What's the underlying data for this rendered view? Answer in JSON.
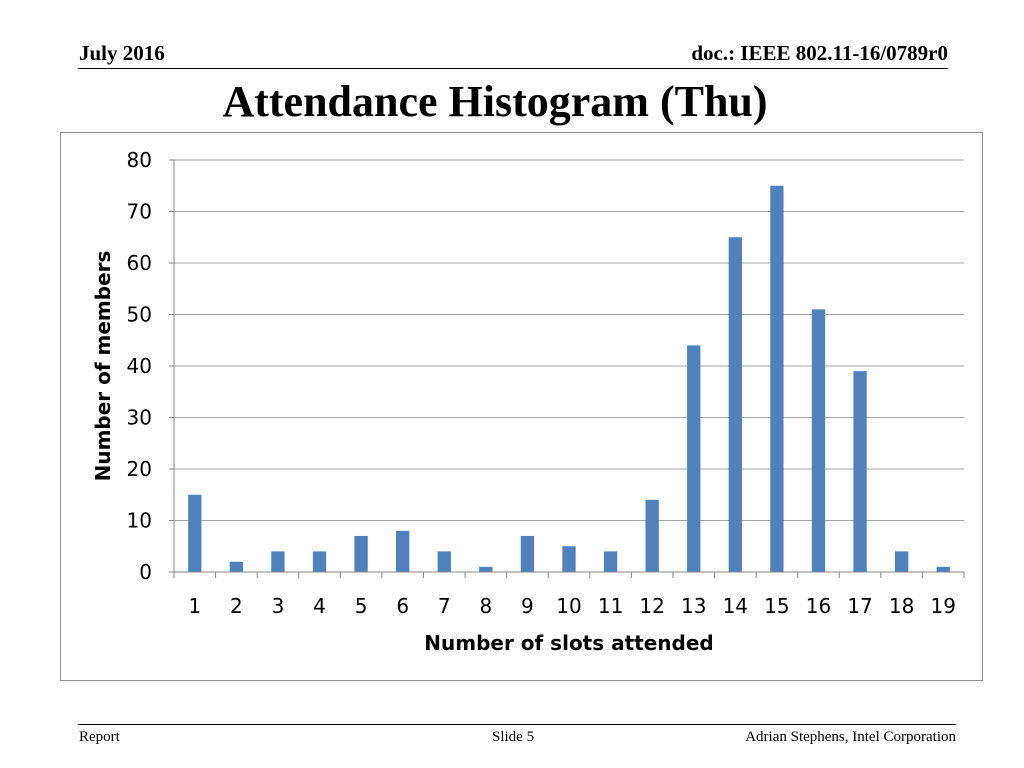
{
  "header": {
    "date": "July 2016",
    "doc": "doc.: IEEE 802.11-16/0789r0"
  },
  "slide_title": "Attendance Histogram (Thu)",
  "footer": {
    "left": "Report",
    "slide": "Slide 5",
    "author": "Adrian Stephens, Intel Corporation"
  },
  "colors": {
    "bar": "#4f81bd",
    "grid": "#a6a6a6",
    "frame": "#8c8c8c"
  },
  "chart_data": {
    "type": "bar",
    "xlabel": "Number of slots attended",
    "ylabel": "Number of members",
    "categories": [
      "1",
      "2",
      "3",
      "4",
      "5",
      "6",
      "7",
      "8",
      "9",
      "10",
      "11",
      "12",
      "13",
      "14",
      "15",
      "16",
      "17",
      "18",
      "19"
    ],
    "values": [
      15,
      2,
      4,
      4,
      7,
      8,
      4,
      1,
      7,
      5,
      4,
      14,
      44,
      65,
      75,
      51,
      39,
      4,
      1
    ],
    "ylim": [
      0,
      80
    ],
    "yticks": [
      0,
      10,
      20,
      30,
      40,
      50,
      60,
      70,
      80
    ],
    "grid": true,
    "legend": "none"
  }
}
